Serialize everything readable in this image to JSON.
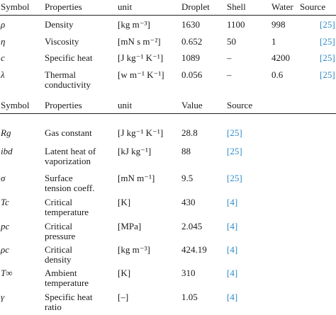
{
  "table1": {
    "headers": {
      "symbol": "Symbol",
      "properties": "Properties",
      "unit": "unit",
      "droplet": "Droplet",
      "shell": "Shell",
      "water": "Water",
      "source": "Source"
    },
    "rows": [
      {
        "symbol": "ρ",
        "property": "Density",
        "unit": "kg m⁻³",
        "droplet": "1630",
        "shell": "1100",
        "water": "998",
        "source": "[25]"
      },
      {
        "symbol": "η",
        "property": "Viscosity",
        "unit": "mN s m⁻²",
        "droplet": "0.652",
        "shell": "50",
        "water": "1",
        "source": "[25]"
      },
      {
        "symbol": "c",
        "property": "Specific heat",
        "unit": "J kg⁻¹ K⁻¹",
        "droplet": "1089",
        "shell": "–",
        "water": "4200",
        "source": "[25]"
      },
      {
        "symbol": "λ",
        "property_line1": "Thermal",
        "property_line2": "conductivity",
        "unit": "w m⁻¹ K⁻¹",
        "droplet": "0.056",
        "shell": "–",
        "water": "0.6",
        "source": "[25]"
      }
    ]
  },
  "table2": {
    "headers": {
      "symbol": "Symbol",
      "properties": "Properties",
      "unit": "unit",
      "value": "Value",
      "source": "Source"
    },
    "rows": [
      {
        "symbol": "Rg",
        "property_line1": "Gas constant",
        "property_line2": "",
        "unit": "J kg⁻¹ K⁻¹",
        "value": "28.8",
        "source": "[25]"
      },
      {
        "symbol": "ibd",
        "property_line1": "Latent heat of",
        "property_line2": "vaporization",
        "unit": "kJ kg⁻¹",
        "value": "88",
        "source": "[25]"
      },
      {
        "symbol": "σ",
        "property_line1": "Surface",
        "property_line2": "tension coeff.",
        "unit": "mN m⁻¹",
        "value": "9.5",
        "source": "[25]"
      },
      {
        "symbol": "Tc",
        "property_line1": "Critical",
        "property_line2": "temperature",
        "unit": "K",
        "value": "430",
        "source": "[4]"
      },
      {
        "symbol": "pc",
        "property_line1": "Critical",
        "property_line2": "pressure",
        "unit": "MPa",
        "value": "2.045",
        "source": "[4]"
      },
      {
        "symbol": "ρc",
        "property_line1": "Critical",
        "property_line2": "density",
        "unit": "kg m⁻³",
        "value": "424.19",
        "source": "[4]"
      },
      {
        "symbol": "T∞",
        "property_line1": "Ambient",
        "property_line2": "temperature",
        "unit": "K",
        "value": "310",
        "source": "[4]"
      },
      {
        "symbol": "γ",
        "property_line1": "Specific heat",
        "property_line2": "ratio",
        "unit": "–",
        "value": "1.05",
        "source": "[4]"
      }
    ]
  },
  "colors": {
    "reference_link": "#2e8bc9",
    "text": "#1a1a1a",
    "rule": "#222222"
  }
}
